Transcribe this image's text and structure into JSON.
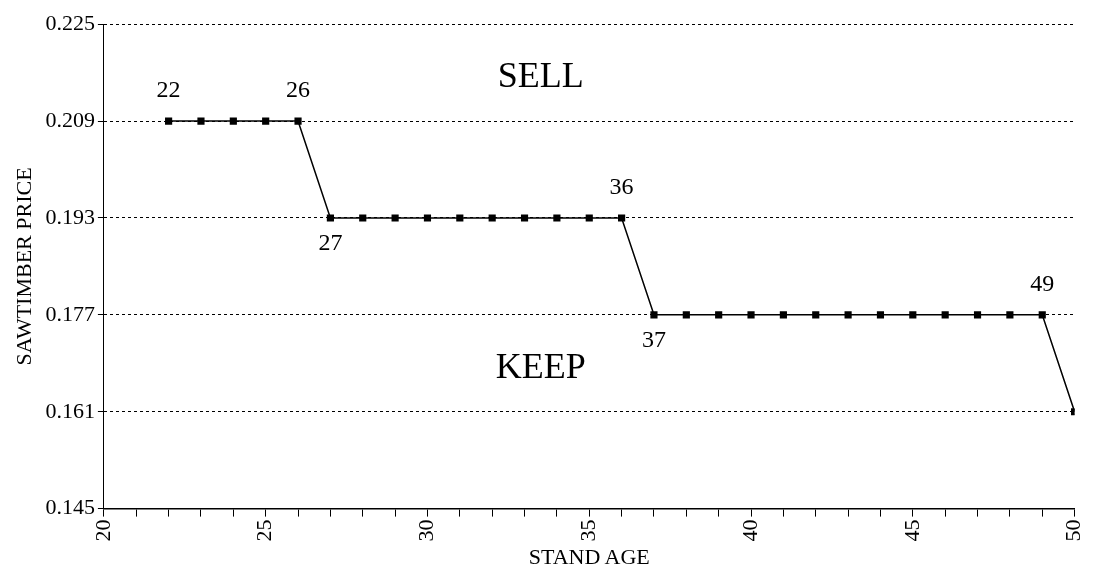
{
  "chart_data": {
    "type": "line",
    "xlabel": "STAND AGE",
    "ylabel": "SAWTIMBER PRICE",
    "x": [
      22,
      23,
      24,
      25,
      26,
      27,
      28,
      29,
      30,
      31,
      32,
      33,
      34,
      35,
      36,
      37,
      38,
      39,
      40,
      41,
      42,
      43,
      44,
      45,
      46,
      47,
      48,
      49,
      50
    ],
    "series": [
      {
        "color": "#000000",
        "values": [
          0.209,
          0.209,
          0.209,
          0.209,
          0.209,
          0.193,
          0.193,
          0.193,
          0.193,
          0.193,
          0.193,
          0.193,
          0.193,
          0.193,
          0.193,
          0.177,
          0.177,
          0.177,
          0.177,
          0.177,
          0.177,
          0.177,
          0.177,
          0.177,
          0.177,
          0.177,
          0.177,
          0.177,
          0.161
        ]
      }
    ],
    "xlim": [
      20,
      50
    ],
    "xticks": [
      20,
      {
        "value": 21,
        "label": null
      },
      {
        "value": 22,
        "label": null
      },
      {
        "value": 23,
        "label": null
      },
      {
        "value": 24,
        "label": null
      },
      25,
      {
        "value": 26,
        "label": null
      },
      {
        "value": 27,
        "label": null
      },
      {
        "value": 28,
        "label": null
      },
      {
        "value": 29,
        "label": null
      },
      30,
      {
        "value": 31,
        "label": null
      },
      {
        "value": 32,
        "label": null
      },
      {
        "value": 33,
        "label": null
      },
      {
        "value": 34,
        "label": null
      },
      35,
      {
        "value": 36,
        "label": null
      },
      {
        "value": 37,
        "label": null
      },
      {
        "value": 38,
        "label": null
      },
      {
        "value": 39,
        "label": null
      },
      40,
      {
        "value": 41,
        "label": null
      },
      {
        "value": 42,
        "label": null
      },
      {
        "value": 43,
        "label": null
      },
      {
        "value": 44,
        "label": null
      },
      45,
      {
        "value": 46,
        "label": null
      },
      {
        "value": 47,
        "label": null
      },
      {
        "value": 48,
        "label": null
      },
      {
        "value": 49,
        "label": null
      },
      50
    ],
    "ylim": [
      0.145,
      0.225
    ],
    "yticks": [
      0.145,
      0.161,
      0.177,
      0.193,
      0.209,
      0.225
    ],
    "grid": "y",
    "marker": "square",
    "line_style": "solid",
    "legend": false,
    "annotations": [
      {
        "text": "22",
        "x": 22,
        "y": 0.209
      },
      {
        "text": "26",
        "x": 26,
        "y": 0.209
      },
      {
        "text": "27",
        "x": 27,
        "y": 0.193
      },
      {
        "text": "36",
        "x": 36,
        "y": 0.193
      },
      {
        "text": "37",
        "x": 37,
        "y": 0.177
      },
      {
        "text": "49",
        "x": 49,
        "y": 0.177
      },
      "SELL",
      "KEEP"
    ]
  }
}
